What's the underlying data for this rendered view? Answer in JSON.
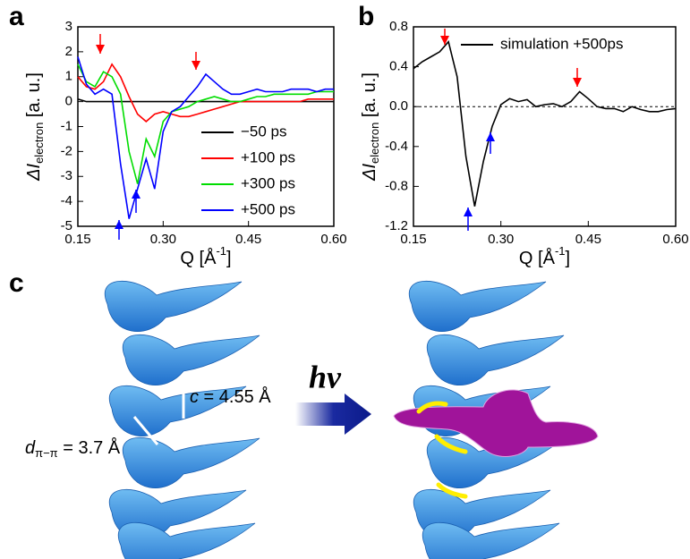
{
  "panel_labels": [
    "a",
    "b",
    "c"
  ],
  "chart_data": [
    {
      "type": "line",
      "xlabel": {
        "text": "Q [Å",
        "sup": "-1",
        "end": "]"
      },
      "ylabel": {
        "main": "ΔI",
        "sub": "electron",
        "unit": " [a. u.]"
      },
      "xlim": [
        0.15,
        0.6
      ],
      "xticks": [
        0.15,
        {
          "value": 0.3,
          "label": "0.30"
        },
        0.45,
        {
          "value": 0.6,
          "label": "0.60"
        }
      ],
      "ylim": [
        -5,
        3
      ],
      "yticks": [
        -5,
        -4,
        -3,
        -2,
        -1,
        0,
        1,
        2,
        3
      ],
      "legend": "lower right",
      "x": [
        0.15,
        0.165,
        0.18,
        0.195,
        0.21,
        0.225,
        0.24,
        0.255,
        0.27,
        0.285,
        0.3,
        0.315,
        0.33,
        0.345,
        0.36,
        0.375,
        0.39,
        0.405,
        0.42,
        0.435,
        0.45,
        0.465,
        0.48,
        0.495,
        0.51,
        0.525,
        0.54,
        0.555,
        0.57,
        0.585,
        0.6
      ],
      "series": [
        {
          "name": "−50 ps",
          "color": "#000000",
          "values": [
            0.1,
            0,
            0,
            0,
            0,
            0,
            0,
            0,
            0,
            0,
            0,
            0,
            0,
            0,
            0,
            0,
            0,
            0,
            0,
            0,
            0,
            0,
            0,
            0,
            0,
            0,
            0,
            0,
            0,
            0,
            0
          ]
        },
        {
          "name": "+100 ps",
          "color": "#ff0000",
          "values": [
            1.0,
            0.6,
            0.5,
            0.8,
            1.5,
            1.0,
            0.2,
            -0.5,
            -0.8,
            -0.5,
            -0.4,
            -0.5,
            -0.6,
            -0.6,
            -0.5,
            -0.4,
            -0.3,
            -0.2,
            -0.1,
            0,
            0,
            0,
            0,
            0,
            0,
            0,
            0,
            0.1,
            0.1,
            0.1,
            0.1
          ]
        },
        {
          "name": "+300 ps",
          "color": "#00dd00",
          "values": [
            1.5,
            0.8,
            0.6,
            1.2,
            1.0,
            0.3,
            -2.0,
            -3.3,
            -1.5,
            -2.2,
            -0.8,
            -0.4,
            -0.3,
            -0.2,
            0,
            0.1,
            0.2,
            0.1,
            0,
            0,
            0.1,
            0.2,
            0.2,
            0.3,
            0.3,
            0.3,
            0.3,
            0.3,
            0.4,
            0.4,
            0.4
          ]
        },
        {
          "name": "+500 ps",
          "color": "#0000ff",
          "values": [
            1.8,
            0.7,
            0.3,
            0.5,
            0.3,
            -2.5,
            -4.7,
            -3.5,
            -2.3,
            -3.5,
            -1.2,
            -0.4,
            -0.2,
            0.2,
            0.6,
            1.1,
            0.8,
            0.5,
            0.3,
            0.3,
            0.4,
            0.5,
            0.4,
            0.4,
            0.4,
            0.5,
            0.5,
            0.5,
            0.4,
            0.5,
            0.5
          ]
        }
      ]
    },
    {
      "type": "line",
      "xlabel": {
        "text": "Q [Å",
        "sup": "-1",
        "end": "]"
      },
      "ylabel": {
        "main": "ΔI",
        "sub": "electron",
        "unit": " [a. u.]"
      },
      "xlim": [
        0.15,
        0.6
      ],
      "xticks": [
        0.15,
        {
          "value": 0.3,
          "label": "0.30"
        },
        0.45,
        {
          "value": 0.6,
          "label": "0.60"
        }
      ],
      "ylim": [
        -1.2,
        0.8
      ],
      "yticks": [
        -1.2,
        -0.8,
        -0.4,
        {
          "value": 0,
          "label": "0.0"
        },
        0.4,
        0.8
      ],
      "zero_line": true,
      "legend": "upper right",
      "x": [
        0.15,
        0.165,
        0.18,
        0.195,
        0.21,
        0.225,
        0.24,
        0.255,
        0.27,
        0.285,
        0.3,
        0.315,
        0.33,
        0.345,
        0.36,
        0.375,
        0.39,
        0.405,
        0.42,
        0.435,
        0.45,
        0.465,
        0.48,
        0.495,
        0.51,
        0.525,
        0.54,
        0.555,
        0.57,
        0.585,
        0.6
      ],
      "series": [
        {
          "name": "simulation +500ps",
          "color": "#000000",
          "values": [
            0.38,
            0.45,
            0.5,
            0.55,
            0.65,
            0.3,
            -0.5,
            -1.0,
            -0.55,
            -0.2,
            0.02,
            0.08,
            0.05,
            0.07,
            0,
            0.02,
            0.03,
            0,
            0.05,
            0.15,
            0.08,
            0,
            -0.02,
            -0.02,
            -0.05,
            0,
            -0.03,
            -0.05,
            -0.05,
            -0.03,
            -0.02
          ]
        }
      ]
    }
  ],
  "diagram": {
    "arrow_label": "hv",
    "c_label": {
      "var": "c",
      "text": " = 4.55 Å"
    },
    "d_label": {
      "var": "d",
      "sub": "π−π",
      "text": " = 3.7 Å"
    }
  }
}
